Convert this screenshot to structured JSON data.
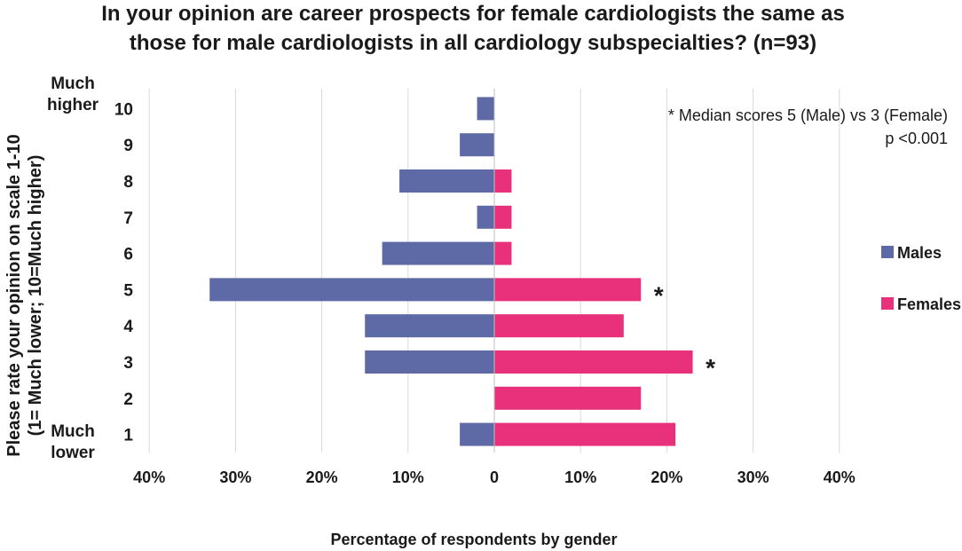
{
  "chart_data": {
    "type": "bar",
    "orientation": "horizontal-diverging",
    "title_lines": [
      "In your opinion are career prospects for female cardiologists the same as",
      "those for male cardiologists in all cardiology subspecialties? (n=93)"
    ],
    "ylabel_lines": [
      "Please rate your opinion on scale 1-10",
      "(1= Much lower; 10=Much higher)"
    ],
    "xlabel": "Percentage of respondents by gender",
    "categories": [
      "10",
      "9",
      "8",
      "7",
      "6",
      "5",
      "4",
      "3",
      "2",
      "1"
    ],
    "top_anchor_label": "Much\nhigher",
    "bottom_anchor_label": "Much\nlower",
    "x_ticks": [
      {
        "value": -40,
        "label": "40%"
      },
      {
        "value": -30,
        "label": "30%"
      },
      {
        "value": -20,
        "label": "20%"
      },
      {
        "value": -10,
        "label": "10%"
      },
      {
        "value": 0,
        "label": "0"
      },
      {
        "value": 10,
        "label": "10%"
      },
      {
        "value": 20,
        "label": "20%"
      },
      {
        "value": 30,
        "label": "30%"
      },
      {
        "value": 40,
        "label": "40%"
      }
    ],
    "xlim": [
      -40,
      40
    ],
    "grid": true,
    "series": [
      {
        "name": "Males",
        "color": "#5e6aa6",
        "direction": "left",
        "values": [
          2,
          4,
          11,
          2,
          13,
          33,
          15,
          15,
          0,
          4
        ]
      },
      {
        "name": "Females",
        "color": "#e8317a",
        "direction": "right",
        "values": [
          0,
          0,
          2,
          2,
          2,
          17,
          15,
          23,
          17,
          21
        ]
      }
    ],
    "significance_markers": [
      {
        "category": "5",
        "series": "Females",
        "symbol": "*"
      },
      {
        "category": "3",
        "series": "Females",
        "symbol": "*"
      }
    ],
    "annotation_lines": [
      "* Median scores 5 (Male) vs 3 (Female)",
      "p <0.001"
    ],
    "legend_position": "right"
  }
}
